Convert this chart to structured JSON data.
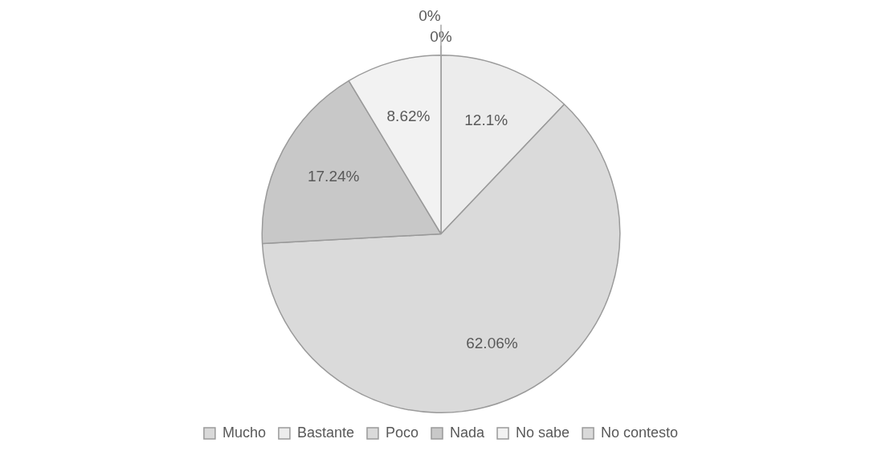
{
  "chart_data": {
    "type": "pie",
    "categories": [
      "Mucho",
      "Bastante",
      "Poco",
      "Nada",
      "No sabe",
      "No contesto"
    ],
    "values": [
      0,
      12.1,
      62.06,
      17.24,
      8.62,
      0
    ],
    "colors": [
      "#d9d9d9",
      "#ececec",
      "#dadada",
      "#c8c8c8",
      "#f2f2f2",
      "#d9d9d9"
    ],
    "value_labels": [
      "0%",
      "12.1%",
      "62.06%",
      "17.24%",
      "8.62%",
      "0%"
    ],
    "legend": "bottom"
  }
}
